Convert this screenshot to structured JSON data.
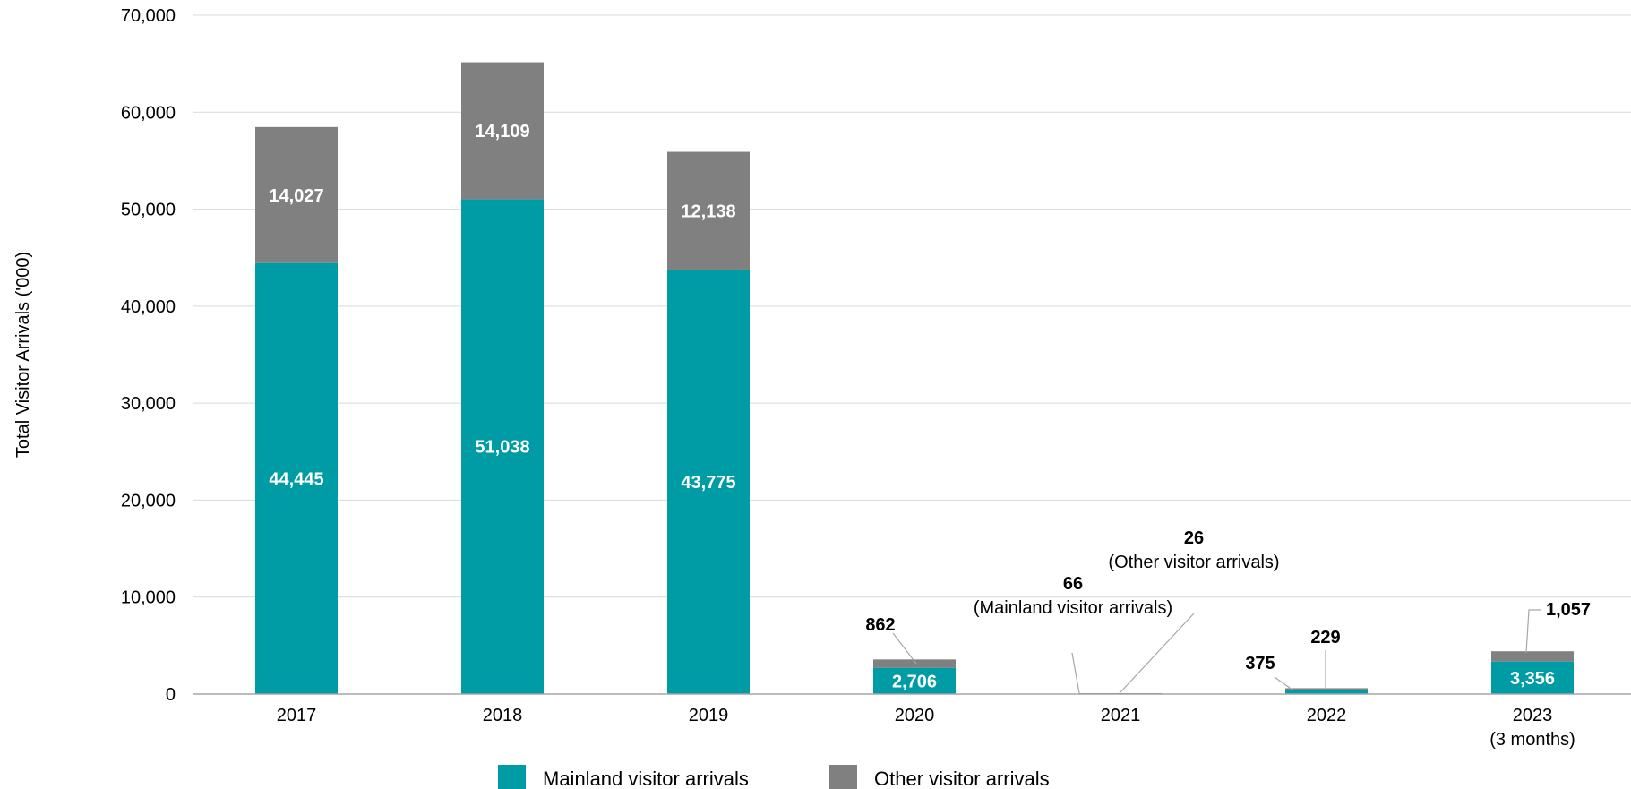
{
  "chart_data": {
    "type": "bar",
    "stacked": true,
    "ylabel": "Total Visitor Arrivals ('000)",
    "ylim": [
      0,
      70000
    ],
    "yticks": [
      0,
      10000,
      20000,
      30000,
      40000,
      50000,
      60000,
      70000
    ],
    "ytick_labels": [
      "0",
      "10,000",
      "20,000",
      "30,000",
      "40,000",
      "50,000",
      "60,000",
      "70,000"
    ],
    "grid": true,
    "legend_position": "bottom",
    "categories": [
      {
        "label": "2017",
        "sub": ""
      },
      {
        "label": "2018",
        "sub": ""
      },
      {
        "label": "2019",
        "sub": ""
      },
      {
        "label": "2020",
        "sub": ""
      },
      {
        "label": "2021",
        "sub": ""
      },
      {
        "label": "2022",
        "sub": ""
      },
      {
        "label": "2023",
        "sub": "(3 months)"
      }
    ],
    "series": [
      {
        "name": "Mainland visitor arrivals",
        "color": "#009CA6",
        "values": [
          44445,
          51038,
          43775,
          2706,
          66,
          375,
          3356
        ],
        "labels": [
          "44,445",
          "51,038",
          "43,775",
          "2,706",
          "66",
          "375",
          "3,356"
        ]
      },
      {
        "name": "Other visitor arrivals",
        "color": "#808080",
        "values": [
          14027,
          14109,
          12138,
          862,
          26,
          229,
          1057
        ],
        "labels": [
          "14,027",
          "14,109",
          "12,138",
          "862",
          "26",
          "229",
          "1,057"
        ]
      }
    ],
    "annotations": {
      "mainland_2021": "(Mainland visitor arrivals)",
      "other_2021": "(Other visitor arrivals)"
    }
  }
}
